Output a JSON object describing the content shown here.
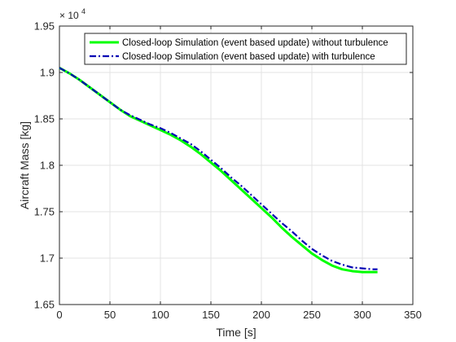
{
  "chart_data": {
    "type": "line",
    "xlabel": "Time [s]",
    "ylabel": "Aircraft Mass [kg]",
    "xlim": [
      0,
      350
    ],
    "ylim": [
      16500,
      19500
    ],
    "xticks": [
      0,
      50,
      100,
      150,
      200,
      250,
      300,
      350
    ],
    "yticks": [
      16500,
      17000,
      17500,
      18000,
      18500,
      19000,
      19500
    ],
    "ytick_labels": [
      "1.65",
      "1.7",
      "1.75",
      "1.8",
      "1.85",
      "1.9",
      "1.95"
    ],
    "xtick_labels": [
      "0",
      "50",
      "100",
      "150",
      "200",
      "250",
      "300",
      "350"
    ],
    "y_exponent": {
      "base": "× 10",
      "power": "4"
    },
    "grid": true,
    "legend_position": "top-right",
    "series": [
      {
        "name": "Closed-loop Simulation (event based update) without turbulence",
        "color": "#00ff00",
        "style": "solid",
        "x": [
          0,
          10,
          20,
          30,
          40,
          50,
          60,
          70,
          80,
          90,
          100,
          110,
          120,
          130,
          140,
          150,
          160,
          170,
          180,
          190,
          200,
          210,
          220,
          230,
          240,
          250,
          260,
          270,
          280,
          290,
          300,
          310,
          315
        ],
        "y": [
          19050,
          18990,
          18920,
          18840,
          18760,
          18680,
          18600,
          18530,
          18480,
          18430,
          18380,
          18330,
          18270,
          18200,
          18120,
          18030,
          17940,
          17840,
          17740,
          17640,
          17540,
          17440,
          17330,
          17230,
          17140,
          17050,
          16980,
          16920,
          16880,
          16860,
          16850,
          16850,
          16850
        ]
      },
      {
        "name": "Closed-loop Simulation (event based update) with turbulence",
        "color": "#0000b4",
        "style": "dashdot",
        "x": [
          0,
          10,
          20,
          30,
          40,
          50,
          60,
          70,
          80,
          90,
          100,
          110,
          120,
          130,
          140,
          150,
          160,
          170,
          180,
          190,
          200,
          210,
          220,
          230,
          240,
          250,
          260,
          270,
          280,
          290,
          300,
          310,
          315
        ],
        "y": [
          19050,
          18990,
          18920,
          18840,
          18760,
          18680,
          18600,
          18540,
          18490,
          18440,
          18400,
          18350,
          18290,
          18230,
          18150,
          18060,
          17970,
          17870,
          17780,
          17680,
          17580,
          17480,
          17380,
          17290,
          17190,
          17100,
          17030,
          16970,
          16930,
          16900,
          16890,
          16880,
          16880
        ]
      }
    ]
  }
}
